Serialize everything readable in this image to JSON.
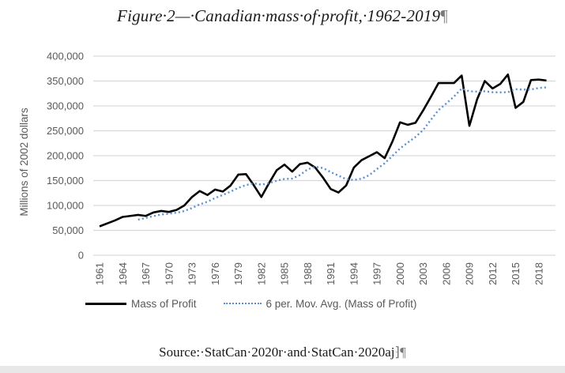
{
  "figure": {
    "title": "Figure·2—·Canadian·mass·of·profit,·1962-2019",
    "title_mark": "¶",
    "source": "Source:·StatCan·2020r·and·StatCan·2020aj",
    "source_mark": "⁆¶"
  },
  "chart_data": {
    "type": "line",
    "title": "Figure 2 — Canadian mass of profit, 1962-2019",
    "xlabel": "",
    "ylabel": "Millions of 2002 dollars",
    "ylim": [
      0,
      400000
    ],
    "yticks": [
      0,
      50000,
      100000,
      150000,
      200000,
      250000,
      300000,
      350000,
      400000
    ],
    "ytick_labels": [
      "0",
      "50,000",
      "100,000",
      "150,000",
      "200,000",
      "250,000",
      "300,000",
      "350,000",
      "400,000"
    ],
    "xlim": [
      1961,
      2019
    ],
    "xtick_labels": [
      "1961",
      "1964",
      "1967",
      "1970",
      "1973",
      "1976",
      "1979",
      "1982",
      "1985",
      "1988",
      "1991",
      "1994",
      "1997",
      "2000",
      "2003",
      "2006",
      "2009",
      "2012",
      "2015",
      "2018"
    ],
    "grid": true,
    "legend_position": "bottom",
    "x": [
      1961,
      1962,
      1963,
      1964,
      1965,
      1966,
      1967,
      1968,
      1969,
      1970,
      1971,
      1972,
      1973,
      1974,
      1975,
      1976,
      1977,
      1978,
      1979,
      1980,
      1981,
      1982,
      1983,
      1984,
      1985,
      1986,
      1987,
      1988,
      1989,
      1990,
      1991,
      1992,
      1993,
      1994,
      1995,
      1996,
      1997,
      1998,
      1999,
      2000,
      2001,
      2002,
      2003,
      2004,
      2005,
      2006,
      2007,
      2008,
      2009,
      2010,
      2011,
      2012,
      2013,
      2014,
      2015,
      2016,
      2017,
      2018,
      2019
    ],
    "series": [
      {
        "name": "Mass of Profit",
        "style": "solid",
        "color": "#000000",
        "values": [
          58000,
          64000,
          70000,
          77000,
          79000,
          81000,
          79000,
          86000,
          89000,
          87000,
          91000,
          100000,
          117000,
          129000,
          121000,
          132000,
          128000,
          140000,
          162000,
          163000,
          141000,
          117000,
          145000,
          171000,
          182000,
          168000,
          183000,
          186000,
          176000,
          156000,
          133000,
          126000,
          140000,
          176000,
          191000,
          199000,
          207000,
          195000,
          228000,
          267000,
          262000,
          266000,
          291000,
          318000,
          346000,
          346000,
          346000,
          361000,
          260000,
          313000,
          350000,
          335000,
          344000,
          363000,
          296000,
          308000,
          352000,
          353000,
          351000
        ]
      },
      {
        "name": "6 per. Mov. Avg. (Mass of Profit)",
        "style": "dotted",
        "color": "#5b8fd0",
        "values": [
          null,
          null,
          null,
          null,
          null,
          71500,
          75000,
          78700,
          81800,
          83500,
          85500,
          88700,
          95000,
          102200,
          107500,
          115000,
          121200,
          127800,
          135300,
          141000,
          144300,
          141800,
          144700,
          149800,
          153200,
          154000,
          161000,
          172500,
          177700,
          175200,
          167000,
          160000,
          152800,
          151200,
          153700,
          160800,
          173200,
          184700,
          199300,
          214500,
          226300,
          237500,
          251500,
          272000,
          291700,
          304800,
          318800,
          334700,
          329500,
          328700,
          329300,
          327500,
          327200,
          327500,
          333500,
          332700,
          333000,
          336000,
          337200
        ]
      }
    ]
  }
}
